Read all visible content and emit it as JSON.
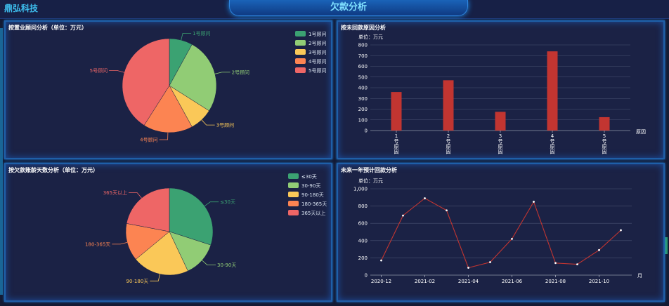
{
  "header": {
    "brand": "鼎弘科技",
    "title": "欠款分析"
  },
  "panels": {
    "p1": {
      "title": "按置业顾问分析（单位：万元）"
    },
    "p2": {
      "title": "按未回款原因分析"
    },
    "p3": {
      "title": "按欠款账龄天数分析（单位：万元）"
    },
    "p4": {
      "title": "未来一年预计回款分析"
    }
  },
  "chart_data": [
    {
      "type": "pie",
      "labels": [
        "1号顾问",
        "2号顾问",
        "3号顾问",
        "4号顾问",
        "5号顾问"
      ],
      "values": [
        8,
        26,
        8,
        17,
        41
      ],
      "colors": [
        "#3ba272",
        "#91cc75",
        "#fac858",
        "#fc8452",
        "#ee6666"
      ],
      "legend": "top-right"
    },
    {
      "type": "bar",
      "ylabel": "单位：万元",
      "xlabel": "原因",
      "categories": [
        "1号原因",
        "2号原因",
        "3号原因",
        "4号原因",
        "5号原因"
      ],
      "values": [
        360,
        470,
        175,
        740,
        125
      ],
      "ylim": [
        0,
        800
      ],
      "yticks": [
        0,
        100,
        200,
        300,
        400,
        500,
        600,
        700,
        800
      ],
      "color": "#c23531"
    },
    {
      "type": "pie",
      "labels": [
        "≤30天",
        "30-90天",
        "90-180天",
        "180-365天",
        "365天以上"
      ],
      "values": [
        30,
        13,
        21,
        14,
        22
      ],
      "colors": [
        "#3ba272",
        "#91cc75",
        "#fac858",
        "#fc8452",
        "#ee6666"
      ],
      "legend": "top-right"
    },
    {
      "type": "line",
      "ylabel": "单位：万元",
      "xlabel": "月",
      "x": [
        "2020-12",
        "2021-01",
        "2021-02",
        "2021-03",
        "2021-04",
        "2021-05",
        "2021-06",
        "2021-07",
        "2021-08",
        "2021-09",
        "2021-10",
        "2021-11"
      ],
      "xticks": [
        "2020-12",
        "2021-02",
        "2021-04",
        "2021-06",
        "2021-08",
        "2021-10"
      ],
      "values": [
        170,
        690,
        890,
        750,
        85,
        150,
        420,
        850,
        140,
        125,
        290,
        520
      ],
      "ylim": [
        0,
        1000
      ],
      "yticks": [
        "0",
        "200",
        "400",
        "600",
        "800",
        "1,000"
      ],
      "color": "#c23531"
    }
  ]
}
